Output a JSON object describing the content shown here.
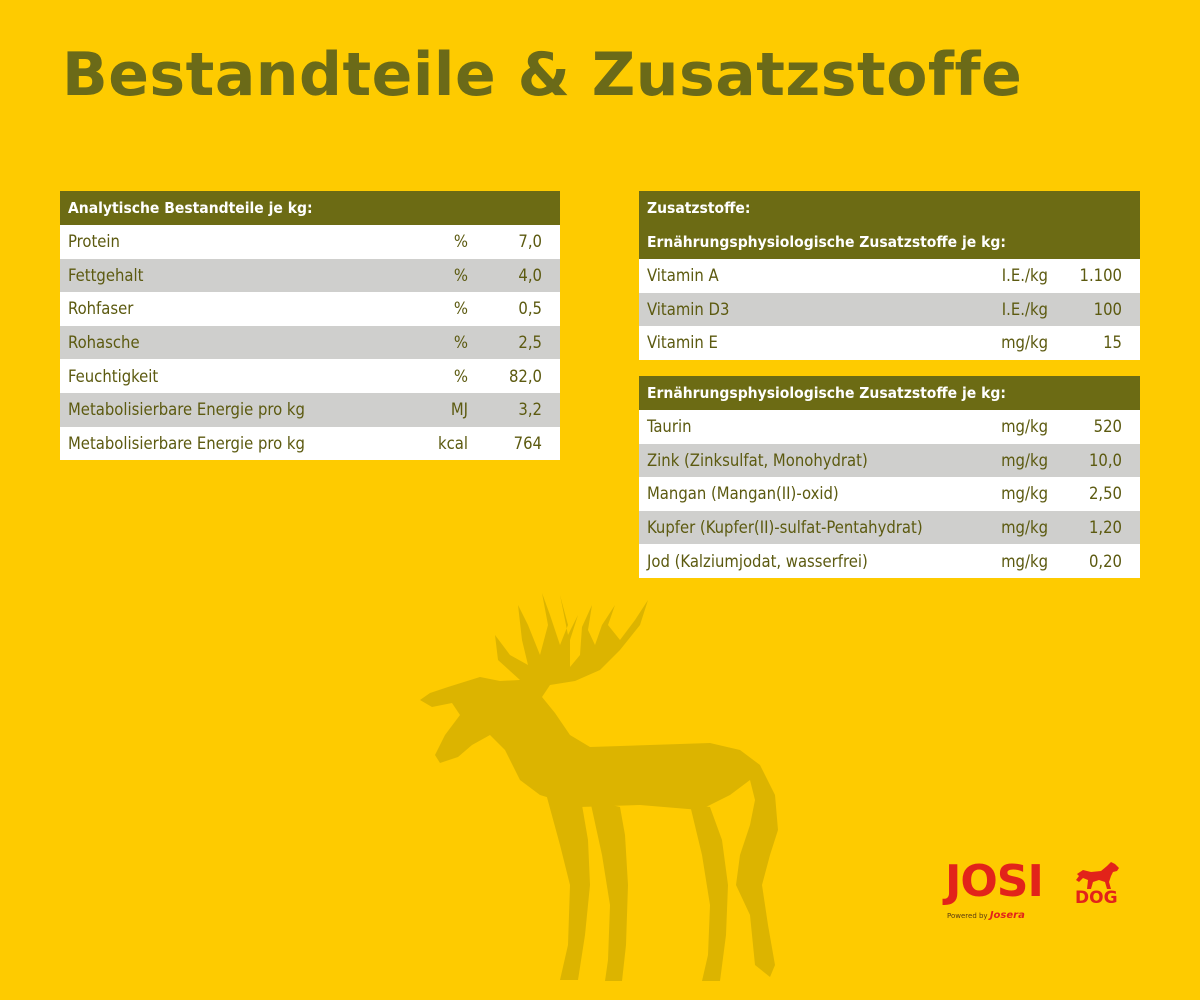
{
  "title": "Bestandteile & Zusatzstoffe",
  "analytics": {
    "header": "Analytische Bestandteile je kg:",
    "rows": [
      {
        "label": "Protein",
        "unit": "%",
        "value": "7,0"
      },
      {
        "label": "Fettgehalt",
        "unit": "%",
        "value": "4,0"
      },
      {
        "label": "Rohfaser",
        "unit": "%",
        "value": "0,5"
      },
      {
        "label": "Rohasche",
        "unit": "%",
        "value": "2,5"
      },
      {
        "label": "Feuchtigkeit",
        "unit": "%",
        "value": "82,0"
      },
      {
        "label": "Metabolisierbare Energie pro kg",
        "unit": "MJ",
        "value": "3,2"
      },
      {
        "label": "Metabolisierbare Energie pro kg",
        "unit": "kcal",
        "value": "764"
      }
    ]
  },
  "additives": {
    "header": "Zusatzstoffe:",
    "group1": {
      "header": "Ernährungsphysiologische Zusatzstoffe je kg:",
      "rows": [
        {
          "label": "Vitamin A",
          "unit": "I.E./kg",
          "value": "1.100"
        },
        {
          "label": "Vitamin D3",
          "unit": "I.E./kg",
          "value": "100"
        },
        {
          "label": "Vitamin E",
          "unit": "mg/kg",
          "value": "15"
        }
      ]
    },
    "group2": {
      "header": "Ernährungsphysiologische Zusatzstoffe je kg:",
      "rows": [
        {
          "label": "Taurin",
          "unit": "mg/kg",
          "value": "520"
        },
        {
          "label": "Zink (Zinksulfat, Monohydrat)",
          "unit": "mg/kg",
          "value": "10,0"
        },
        {
          "label": "Mangan (Mangan(II)-oxid)",
          "unit": "mg/kg",
          "value": "2,50"
        },
        {
          "label": "Kupfer (Kupfer(II)-sulfat-Pentahydrat)",
          "unit": "mg/kg",
          "value": "1,20"
        },
        {
          "label": "Jod (Kalziumjodat, wasserfrei)",
          "unit": "mg/kg",
          "value": "0,20"
        }
      ]
    }
  },
  "logo": {
    "josi": "JOSI",
    "dog": "DOG",
    "powered": "Powered by",
    "brand": "Josera"
  },
  "colors": {
    "background": "#fecb00",
    "header": "#6c6b14",
    "text": "#5c5a10",
    "alt_row": "#cfcfcd",
    "deer": "#dcb400",
    "logo_red": "#e2231a"
  },
  "icons": [
    "deer-silhouette-icon",
    "dog-icon"
  ]
}
